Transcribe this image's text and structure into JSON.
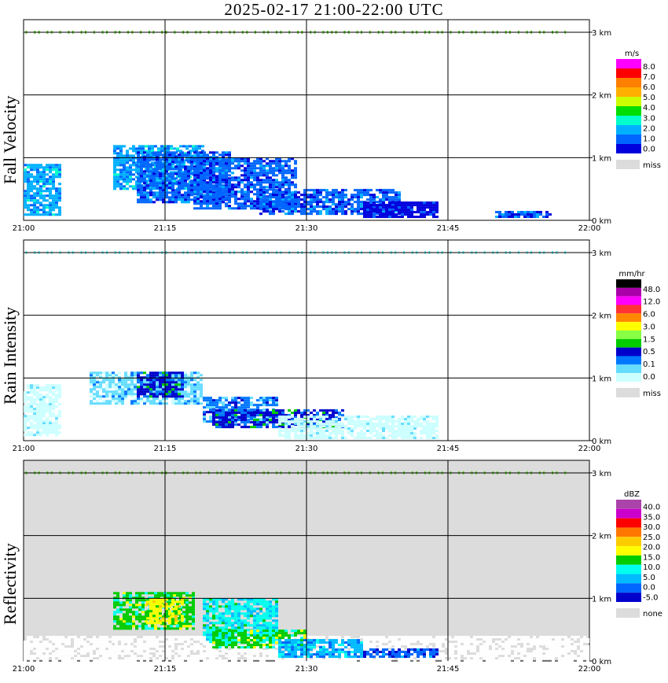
{
  "title": "2025-02-17   21:00-22:00 UTC",
  "x_ticks": [
    "21:00",
    "21:15",
    "21:30",
    "21:45",
    "22:00"
  ],
  "y_ticks": [
    "0 km",
    "1 km",
    "2 km",
    "3 km"
  ],
  "colors": {
    "panel_bg_missing": "#dcdcdc",
    "grid": "#000000"
  },
  "chart_data": [
    {
      "type": "heatmap",
      "title": "Fall Velocity",
      "ylabel": "Fall Velocity",
      "xlim": [
        "21:00",
        "22:00"
      ],
      "ylim": [
        0,
        3.2
      ],
      "background": "#ffffff",
      "legend": {
        "unit": "m/s",
        "labels": [
          "8.0",
          "7.0",
          "6.0",
          "5.0",
          "4.0",
          "3.0",
          "2.0",
          "1.0",
          "0.0"
        ],
        "colors": [
          "#ff00ff",
          "#ff0000",
          "#ff7f00",
          "#ffb000",
          "#ccff00",
          "#00dd00",
          "#00ffcc",
          "#00b0ff",
          "#0066ff",
          "#0000dd"
        ],
        "missing_label": "miss"
      },
      "echo": [
        {
          "t0": 0.0,
          "t1": 4.0,
          "z0": 0.1,
          "z1": 0.9,
          "level": 7
        },
        {
          "t0": 9.5,
          "t1": 19.0,
          "z0": 0.5,
          "z1": 1.2,
          "level": 7
        },
        {
          "t0": 12.0,
          "t1": 22.0,
          "z0": 0.3,
          "z1": 1.1,
          "level": 8
        },
        {
          "t0": 18.0,
          "t1": 29.0,
          "z0": 0.2,
          "z1": 1.0,
          "level": 8
        },
        {
          "t0": 25.0,
          "t1": 40.0,
          "z0": 0.1,
          "z1": 0.5,
          "level": 8
        },
        {
          "t0": 36.0,
          "t1": 44.0,
          "z0": 0.05,
          "z1": 0.3,
          "level": 9
        },
        {
          "t0": 50.0,
          "t1": 56.0,
          "z0": 0.05,
          "z1": 0.15,
          "level": 8
        }
      ]
    },
    {
      "type": "heatmap",
      "title": "Rain Intensity",
      "ylabel": "Rain Intensity",
      "xlim": [
        "21:00",
        "22:00"
      ],
      "ylim": [
        0,
        3.2
      ],
      "background": "#ffffff",
      "legend": {
        "unit": "mm/hr",
        "labels": [
          "48.0",
          "12.0",
          "6.0",
          "3.0",
          "1.5",
          "0.5",
          "0.1",
          "0.0"
        ],
        "colors": [
          "#000000",
          "#aa00aa",
          "#ff00ff",
          "#ff3333",
          "#ff8800",
          "#ffff00",
          "#88ff44",
          "#00cc00",
          "#0000cc",
          "#0077ff",
          "#66ddff",
          "#ccffff"
        ],
        "missing_label": "miss"
      },
      "echo": [
        {
          "t0": 0.0,
          "t1": 4.0,
          "z0": 0.1,
          "z1": 0.9,
          "level": 11
        },
        {
          "t0": 7.0,
          "t1": 19.0,
          "z0": 0.6,
          "z1": 1.1,
          "level": 10
        },
        {
          "t0": 12.0,
          "t1": 17.0,
          "z0": 0.7,
          "z1": 1.1,
          "level": 8
        },
        {
          "t0": 19.0,
          "t1": 27.0,
          "z0": 0.3,
          "z1": 0.7,
          "level": 9
        },
        {
          "t0": 20.0,
          "t1": 34.0,
          "z0": 0.2,
          "z1": 0.5,
          "level": 8
        },
        {
          "t0": 27.0,
          "t1": 44.0,
          "z0": 0.05,
          "z1": 0.4,
          "level": 11
        }
      ]
    },
    {
      "type": "heatmap",
      "title": "Reflectivity",
      "ylabel": "Reflectivity",
      "xlim": [
        "21:00",
        "22:00"
      ],
      "ylim": [
        0,
        3.2
      ],
      "background": "#dcdcdc",
      "legend": {
        "unit": "dBZ",
        "labels": [
          "40.0",
          "35.0",
          "30.0",
          "25.0",
          "20.0",
          "15.0",
          "10.0",
          "5.0",
          "0.0",
          "-5.0"
        ],
        "colors": [
          "#aa44aa",
          "#cc00cc",
          "#ff0000",
          "#ff7700",
          "#ffcc00",
          "#ffff00",
          "#00cc00",
          "#00ffee",
          "#00bbff",
          "#0066ff",
          "#0000cc"
        ],
        "missing_label": "none"
      },
      "echo": [
        {
          "t0": 0.0,
          "t1": 60.0,
          "z0": 0.0,
          "z1": 0.4,
          "level": "white"
        },
        {
          "t0": 9.5,
          "t1": 18.0,
          "z0": 0.5,
          "z1": 1.1,
          "level": 6
        },
        {
          "t0": 13.0,
          "t1": 17.0,
          "z0": 0.6,
          "z1": 1.0,
          "level": 5
        },
        {
          "t0": 19.0,
          "t1": 27.0,
          "z0": 0.3,
          "z1": 1.0,
          "level": 7
        },
        {
          "t0": 20.0,
          "t1": 30.0,
          "z0": 0.2,
          "z1": 0.5,
          "level": 6
        },
        {
          "t0": 27.0,
          "t1": 36.0,
          "z0": 0.05,
          "z1": 0.35,
          "level": 8
        },
        {
          "t0": 36.0,
          "t1": 44.0,
          "z0": 0.05,
          "z1": 0.2,
          "level": 9
        }
      ]
    }
  ]
}
